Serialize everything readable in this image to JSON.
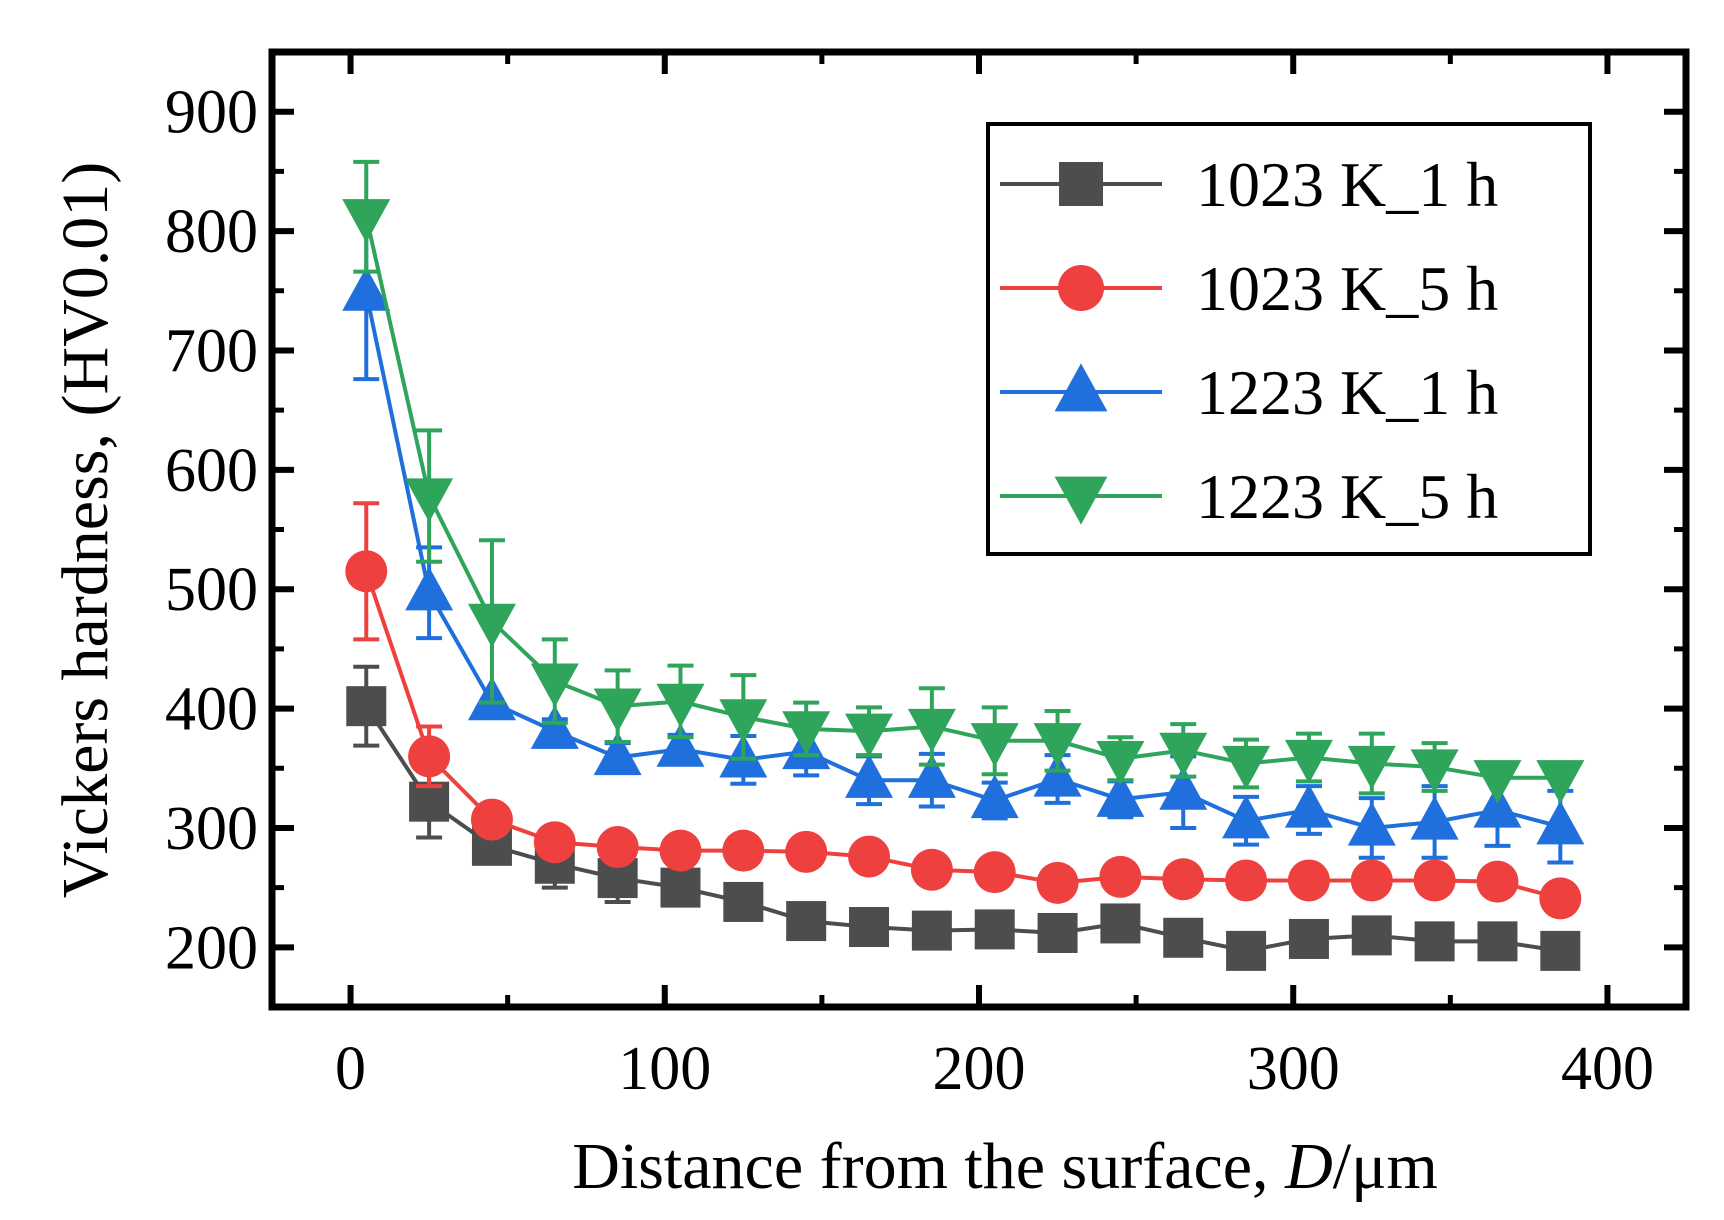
{
  "chart_data": {
    "type": "line",
    "title": "",
    "xlabel_main": "Distance from the surface, ",
    "xlabel_var": "D",
    "xlabel_unit": "/μm",
    "ylabel": "Vickers hardness, (HV0.01)",
    "xlim": [
      -25,
      425
    ],
    "ylim": [
      150,
      950
    ],
    "x_ticks": [
      0,
      100,
      200,
      300,
      400
    ],
    "y_ticks": [
      200,
      300,
      400,
      500,
      600,
      700,
      800,
      900
    ],
    "legend_position": "top-right",
    "x": [
      5,
      25,
      45,
      65,
      85,
      105,
      125,
      145,
      165,
      185,
      205,
      225,
      245,
      265,
      285,
      305,
      325,
      345,
      365,
      385
    ],
    "series": [
      {
        "name": "1023 K_1 h",
        "color": "#4d4d4d",
        "marker": "square",
        "values": [
          402,
          322,
          285,
          270,
          258,
          250,
          238,
          222,
          217,
          214,
          215,
          212,
          220,
          208,
          197,
          207,
          210,
          205,
          205,
          197
        ],
        "errors": [
          33,
          30,
          0,
          20,
          20,
          12,
          0,
          0,
          0,
          0,
          0,
          0,
          0,
          0,
          0,
          0,
          0,
          0,
          0,
          0
        ]
      },
      {
        "name": "1023 K_5 h",
        "color": "#ef4040",
        "marker": "circle",
        "values": [
          515,
          360,
          307,
          288,
          284,
          281,
          281,
          280,
          276,
          265,
          263,
          254,
          259,
          257,
          256,
          256,
          256,
          256,
          255,
          241
        ],
        "errors": [
          57,
          25,
          0,
          0,
          0,
          0,
          0,
          0,
          0,
          0,
          0,
          0,
          0,
          12,
          0,
          0,
          0,
          0,
          0,
          0
        ]
      },
      {
        "name": "1223 K_1 h",
        "color": "#1f6fdc",
        "marker": "triangle-up",
        "values": [
          748,
          497,
          405,
          381,
          359,
          366,
          357,
          364,
          340,
          340,
          323,
          341,
          324,
          330,
          306,
          315,
          300,
          305,
          315,
          301
        ],
        "errors": [
          72,
          38,
          0,
          10,
          12,
          12,
          20,
          20,
          20,
          22,
          15,
          20,
          15,
          30,
          20,
          20,
          25,
          30,
          30,
          30
        ]
      },
      {
        "name": "1223 K_5 h",
        "color": "#2ea55a",
        "marker": "triangle-down",
        "values": [
          812,
          578,
          473,
          423,
          402,
          406,
          393,
          383,
          381,
          385,
          373,
          373,
          358,
          365,
          354,
          359,
          354,
          351,
          342,
          342
        ],
        "errors": [
          46,
          55,
          68,
          35,
          30,
          30,
          35,
          22,
          20,
          32,
          28,
          25,
          18,
          22,
          20,
          20,
          25,
          20,
          0,
          0
        ]
      }
    ]
  }
}
